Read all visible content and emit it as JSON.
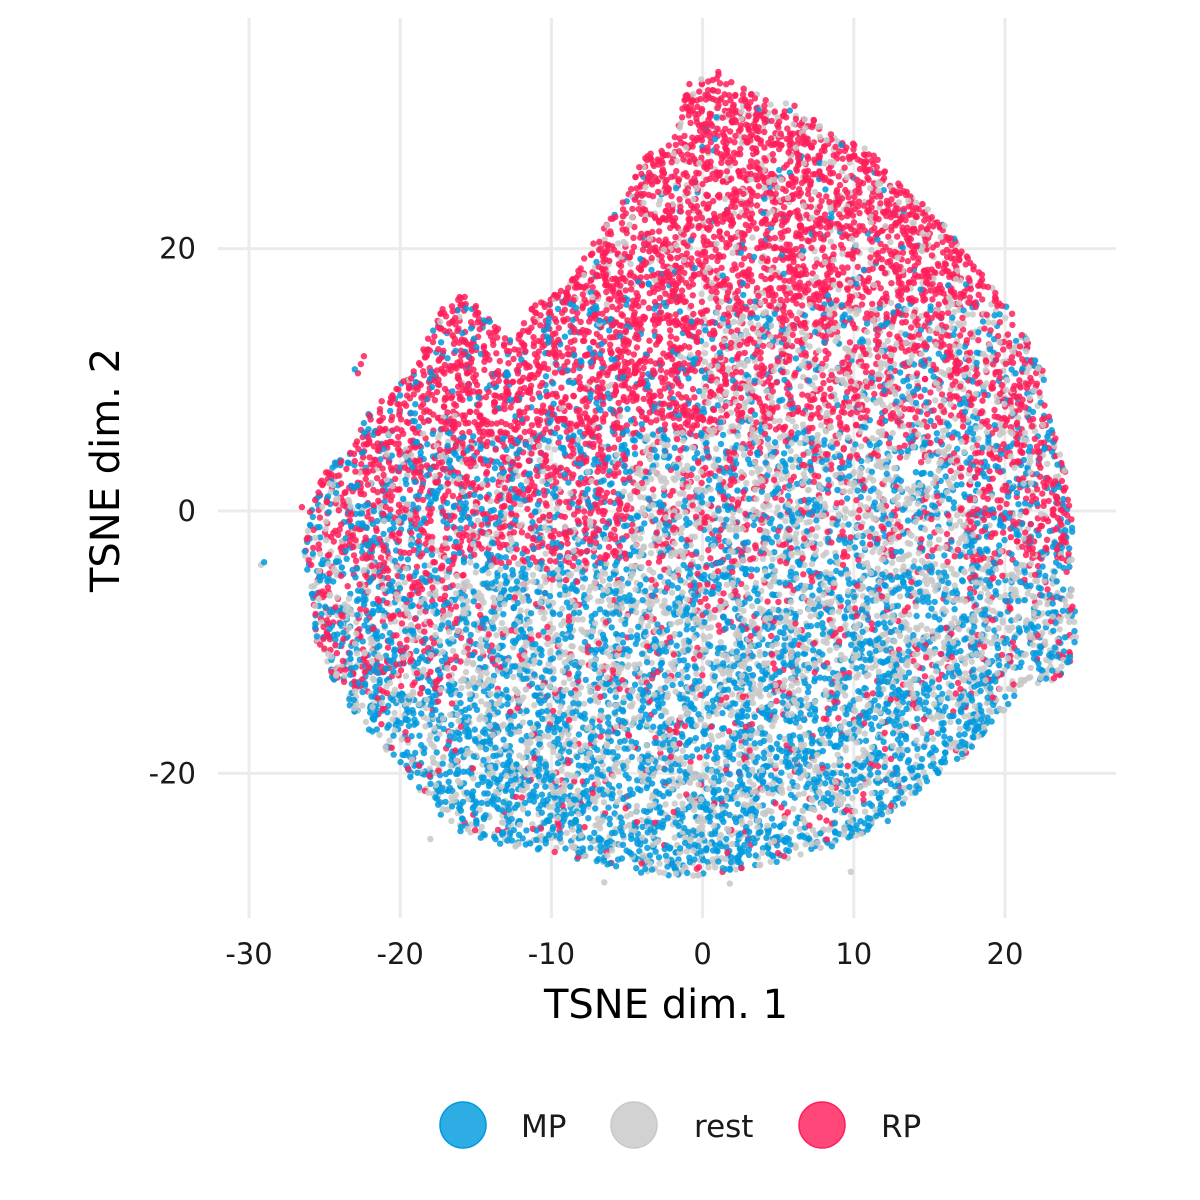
{
  "chart_data": {
    "type": "scatter",
    "title": "",
    "xlabel": "TSNE dim. 1",
    "ylabel": "TSNE dim. 2",
    "xlim": [
      -30.4,
      27.2
    ],
    "ylim": [
      -31.1,
      35.6
    ],
    "xticks": [
      -30,
      -20,
      -10,
      0,
      10,
      20
    ],
    "yticks": [
      -20,
      0,
      20
    ],
    "grid": true,
    "legend_position": "bottom",
    "note_points": "Dense cloud of roughly 20,000+ points; values below are an approximate density summary.",
    "series": [
      {
        "name": "MP",
        "color": "#009ADE",
        "region": "lower and right part of the cloud",
        "centroid": [
          3,
          -15
        ],
        "x_range": [
          -26,
          25
        ],
        "y_range": [
          -28,
          18
        ]
      },
      {
        "name": "rest",
        "color": "#C8C8C8",
        "region": "spread throughout the cloud, mixed with MP and RP",
        "centroid": [
          2,
          -8
        ],
        "x_range": [
          -29,
          24
        ],
        "y_range": [
          -28,
          25
        ]
      },
      {
        "name": "RP",
        "color": "#FF1F5B",
        "region": "upper part of the cloud and right edge",
        "centroid": [
          -2,
          14
        ],
        "x_range": [
          -26,
          25
        ],
        "y_range": [
          -26,
          34
        ]
      }
    ]
  }
}
